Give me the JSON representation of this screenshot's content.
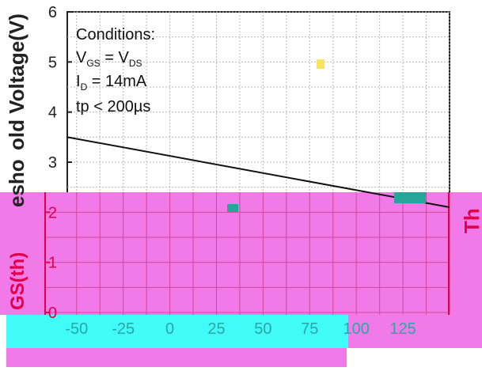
{
  "chart_data": {
    "type": "line",
    "ylabel": "Threshold Voltage(V)",
    "ylabel_visible_fragments": [
      "old Voltage(V)",
      "esho",
      "GS(th)",
      "Th"
    ],
    "xlabel": "",
    "x_ticks": [
      "-50",
      "-25",
      "0",
      "25",
      "50",
      "75",
      "100",
      "125"
    ],
    "y_ticks": [
      "0",
      "1",
      "2",
      "3",
      "4",
      "5",
      "6"
    ],
    "xlim": [
      -55,
      150
    ],
    "ylim": [
      0,
      6
    ],
    "grid": true,
    "series": [
      {
        "x": [
          -55,
          150
        ],
        "y": [
          3.5,
          2.1
        ]
      }
    ],
    "annotation": {
      "lines": [
        "Conditions:",
        "V_GS = V_DS",
        "I_D = 14mA",
        "tp < 200µs"
      ],
      "heading": "Conditions:",
      "vgs_main": "V",
      "vgs_sub": "GS",
      "vgs_eq": " = V",
      "vds_sub": "DS",
      "id_main": "I",
      "id_sub": "D",
      "id_val": " = 14mA",
      "tp": "tp < 200µs"
    }
  },
  "colors": {
    "magenta_region": "#f27ae8",
    "cyan_region": "#41fbf9",
    "grid": "#b8b8b8",
    "axis": "#222222",
    "line": "#111111",
    "red_border": "#e0004a"
  }
}
